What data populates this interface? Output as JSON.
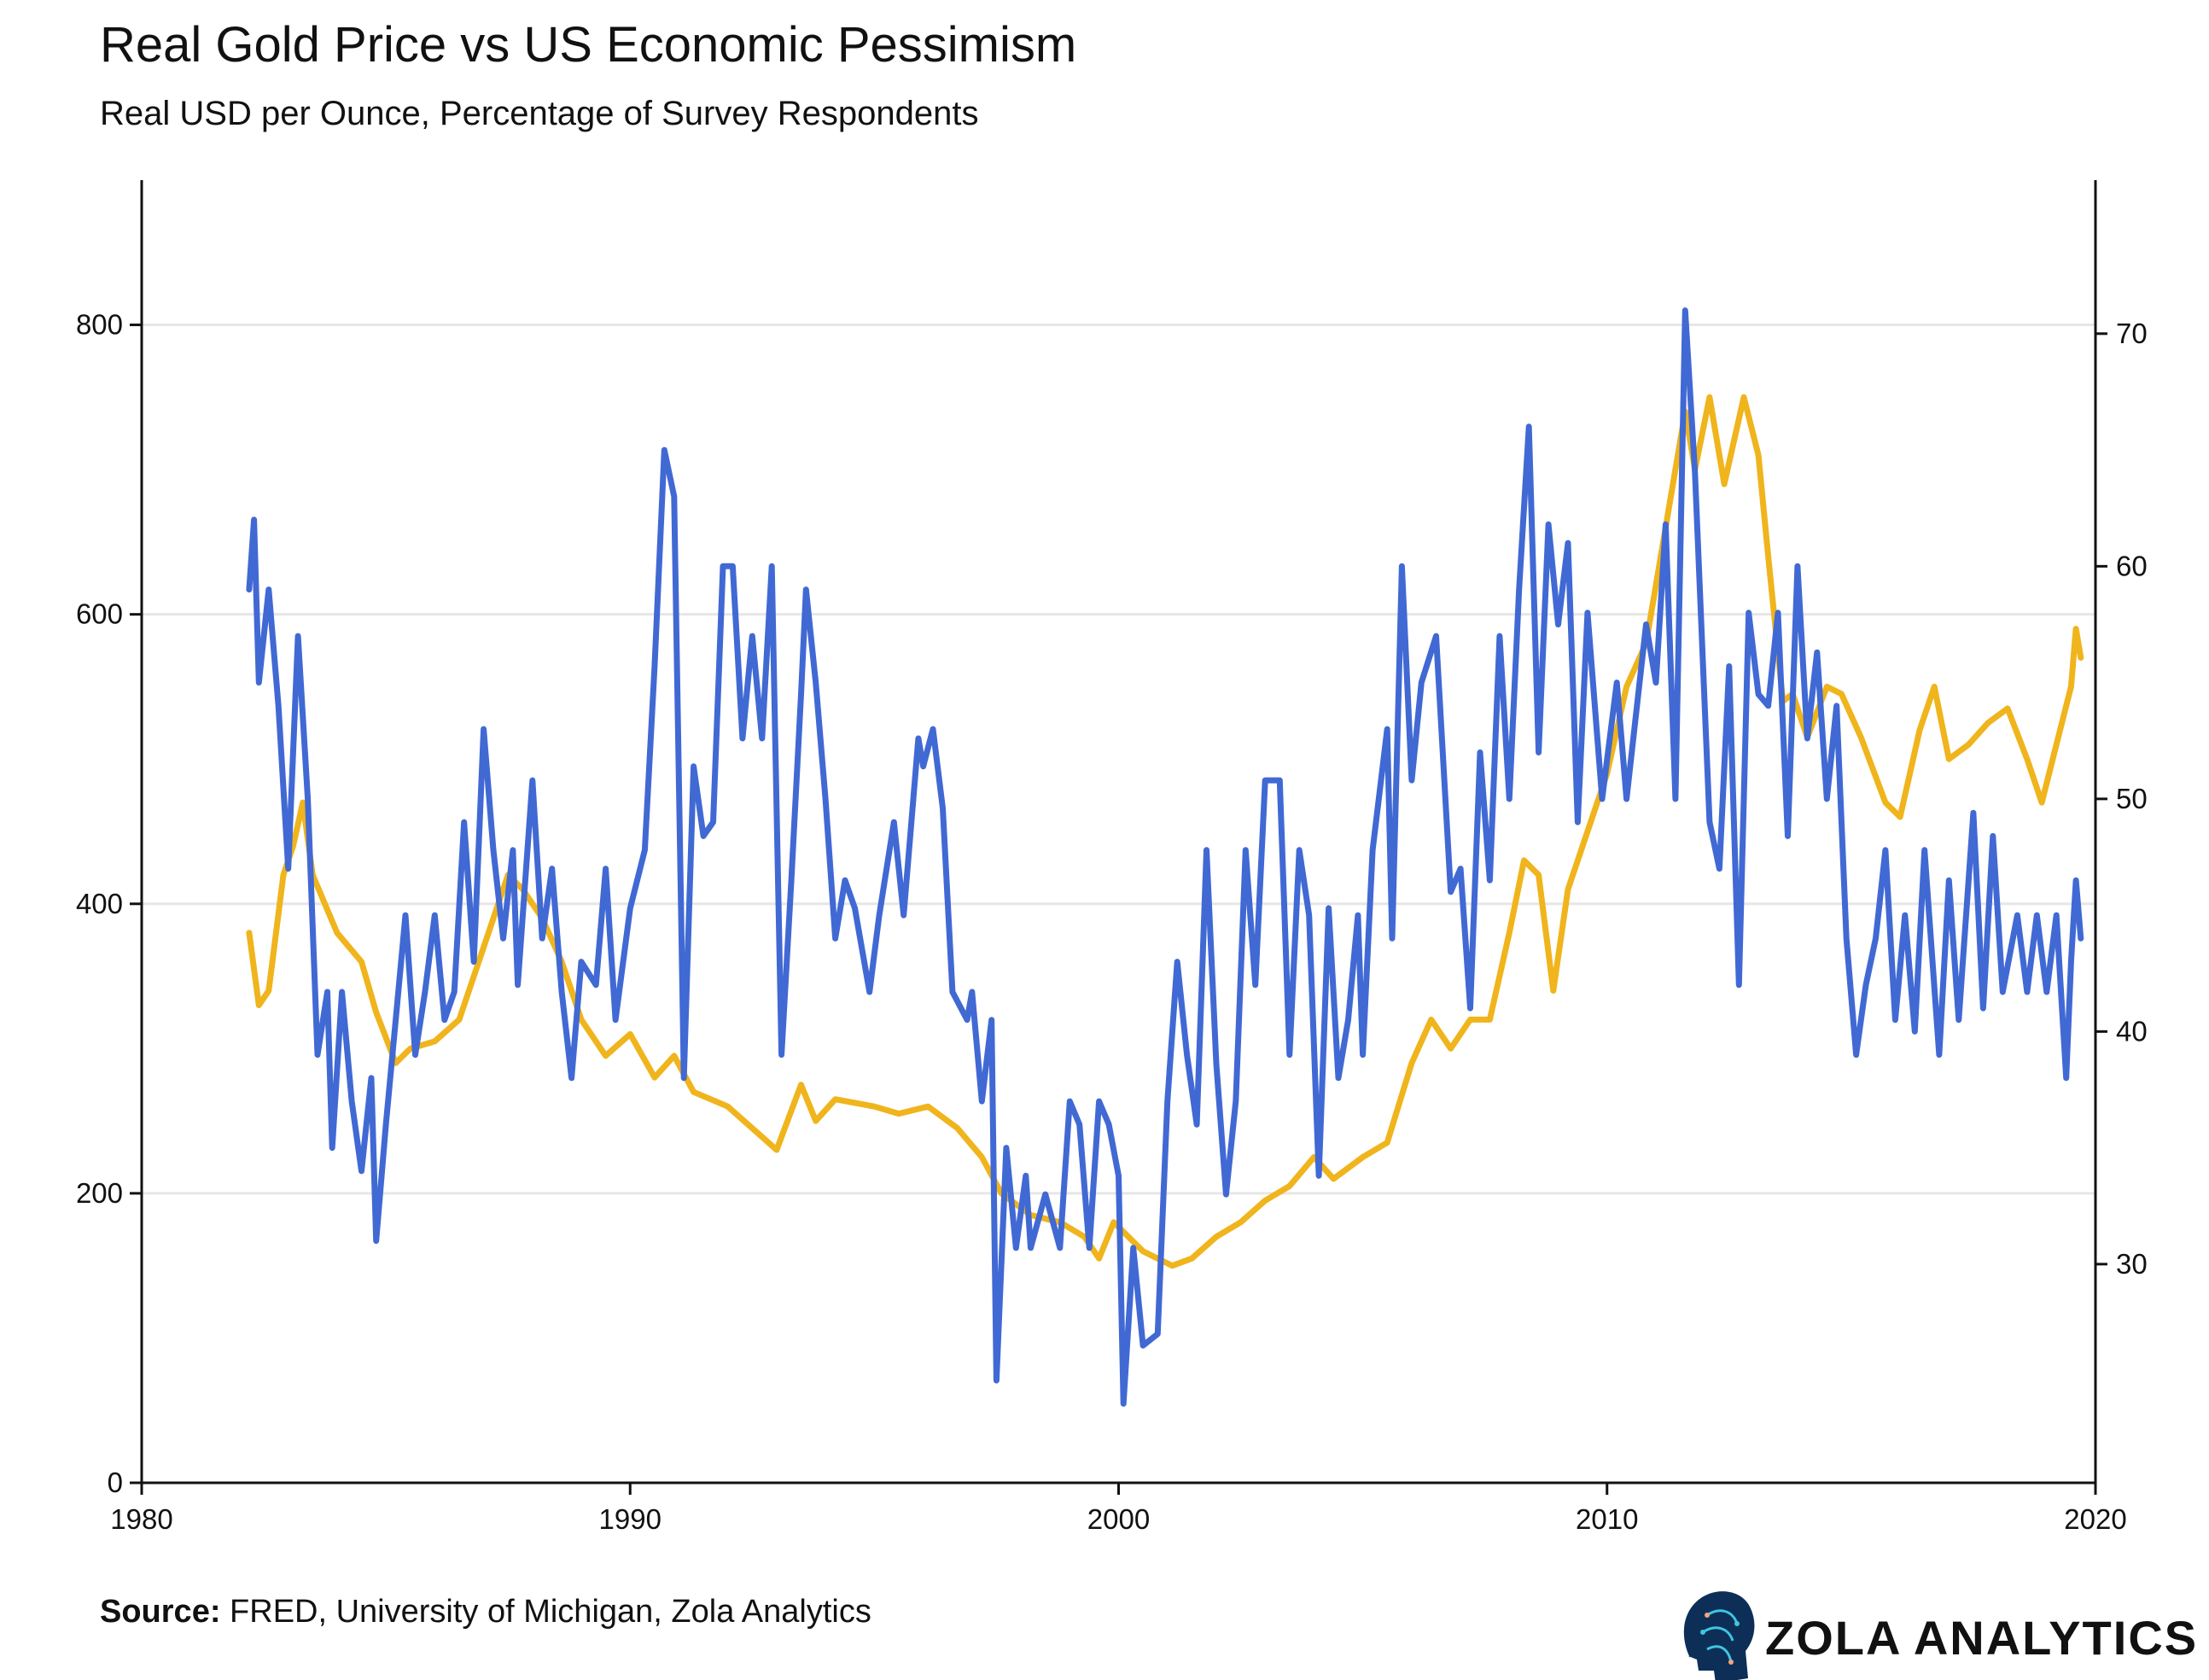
{
  "chart_data": {
    "type": "line",
    "title": "Real Gold Price vs US Economic Pessimism",
    "subtitle": "Real USD per Ounce, Percentage of Survey Respondents",
    "source_label": "Source:",
    "source_text": " FRED, University of Michigan, Zola Analytics",
    "brand": "ZOLA ANALYTICS",
    "grid": true,
    "legend": "none",
    "xlim": [
      1980,
      2020
    ],
    "xticks": [
      1980,
      1990,
      2000,
      2010,
      2020
    ],
    "ylim_left": [
      0,
      900
    ],
    "yticks_left": [
      0,
      200,
      400,
      600,
      800
    ],
    "ylim_right": [
      20.6,
      76.6
    ],
    "yticks_right": [
      30,
      40,
      50,
      60,
      70
    ],
    "series": [
      {
        "axis": "left",
        "color": "#F0B41C",
        "points": [
          [
            1982.2,
            380
          ],
          [
            1982.4,
            330
          ],
          [
            1982.6,
            340
          ],
          [
            1982.9,
            420
          ],
          [
            1983.1,
            440
          ],
          [
            1983.3,
            470
          ],
          [
            1983.5,
            420
          ],
          [
            1984.0,
            380
          ],
          [
            1984.5,
            360
          ],
          [
            1984.8,
            325
          ],
          [
            1985.2,
            290
          ],
          [
            1985.5,
            300
          ],
          [
            1986.0,
            305
          ],
          [
            1986.5,
            320
          ],
          [
            1987.0,
            370
          ],
          [
            1987.5,
            420
          ],
          [
            1987.8,
            410
          ],
          [
            1988.2,
            390
          ],
          [
            1988.6,
            360
          ],
          [
            1989.0,
            320
          ],
          [
            1989.5,
            295
          ],
          [
            1990.0,
            310
          ],
          [
            1990.5,
            280
          ],
          [
            1990.9,
            295
          ],
          [
            1991.3,
            270
          ],
          [
            1992.0,
            260
          ],
          [
            1992.5,
            245
          ],
          [
            1993.0,
            230
          ],
          [
            1993.5,
            275
          ],
          [
            1993.8,
            250
          ],
          [
            1994.2,
            265
          ],
          [
            1995.0,
            260
          ],
          [
            1995.5,
            255
          ],
          [
            1996.1,
            260
          ],
          [
            1996.7,
            245
          ],
          [
            1997.2,
            225
          ],
          [
            1997.6,
            200
          ],
          [
            1998.2,
            185
          ],
          [
            1998.8,
            180
          ],
          [
            1999.3,
            170
          ],
          [
            1999.6,
            155
          ],
          [
            1999.9,
            180
          ],
          [
            2000.5,
            160
          ],
          [
            2001.1,
            150
          ],
          [
            2001.5,
            155
          ],
          [
            2002.0,
            170
          ],
          [
            2002.5,
            180
          ],
          [
            2003.0,
            195
          ],
          [
            2003.5,
            205
          ],
          [
            2004.0,
            225
          ],
          [
            2004.4,
            210
          ],
          [
            2005.0,
            225
          ],
          [
            2005.5,
            235
          ],
          [
            2006.0,
            290
          ],
          [
            2006.4,
            320
          ],
          [
            2006.8,
            300
          ],
          [
            2007.2,
            320
          ],
          [
            2007.6,
            320
          ],
          [
            2008.0,
            380
          ],
          [
            2008.3,
            430
          ],
          [
            2008.6,
            420
          ],
          [
            2008.9,
            340
          ],
          [
            2009.2,
            410
          ],
          [
            2009.6,
            450
          ],
          [
            2010.0,
            490
          ],
          [
            2010.4,
            550
          ],
          [
            2010.8,
            580
          ],
          [
            2011.0,
            620
          ],
          [
            2011.3,
            680
          ],
          [
            2011.6,
            740
          ],
          [
            2011.8,
            700
          ],
          [
            2012.1,
            750
          ],
          [
            2012.4,
            690
          ],
          [
            2012.8,
            750
          ],
          [
            2013.1,
            710
          ],
          [
            2013.3,
            640
          ],
          [
            2013.6,
            540
          ],
          [
            2013.8,
            545
          ],
          [
            2014.1,
            515
          ],
          [
            2014.5,
            550
          ],
          [
            2014.8,
            545
          ],
          [
            2015.2,
            515
          ],
          [
            2015.7,
            470
          ],
          [
            2016.0,
            460
          ],
          [
            2016.4,
            520
          ],
          [
            2016.7,
            550
          ],
          [
            2017.0,
            500
          ],
          [
            2017.4,
            510
          ],
          [
            2017.8,
            525
          ],
          [
            2018.2,
            535
          ],
          [
            2018.6,
            500
          ],
          [
            2018.9,
            470
          ],
          [
            2019.2,
            510
          ],
          [
            2019.5,
            550
          ],
          [
            2019.6,
            590
          ],
          [
            2019.7,
            570
          ]
        ]
      },
      {
        "axis": "right",
        "color": "#4169D4",
        "points": [
          [
            1982.2,
            59
          ],
          [
            1982.3,
            62
          ],
          [
            1982.4,
            55
          ],
          [
            1982.6,
            59
          ],
          [
            1982.8,
            54
          ],
          [
            1983.0,
            47
          ],
          [
            1983.2,
            57
          ],
          [
            1983.4,
            50
          ],
          [
            1983.6,
            39
          ],
          [
            1983.8,
            41.7
          ],
          [
            1983.9,
            35
          ],
          [
            1984.1,
            41.7
          ],
          [
            1984.3,
            37
          ],
          [
            1984.5,
            34
          ],
          [
            1984.7,
            38
          ],
          [
            1984.8,
            31
          ],
          [
            1985.0,
            36
          ],
          [
            1985.2,
            40.5
          ],
          [
            1985.4,
            45
          ],
          [
            1985.6,
            39
          ],
          [
            1985.8,
            41.7
          ],
          [
            1986.0,
            45
          ],
          [
            1986.2,
            40.5
          ],
          [
            1986.4,
            41.7
          ],
          [
            1986.6,
            49
          ],
          [
            1986.8,
            43
          ],
          [
            1987.0,
            53
          ],
          [
            1987.2,
            47.8
          ],
          [
            1987.4,
            44
          ],
          [
            1987.6,
            47.8
          ],
          [
            1987.7,
            42
          ],
          [
            1988.0,
            50.8
          ],
          [
            1988.2,
            44
          ],
          [
            1988.4,
            47
          ],
          [
            1988.6,
            41.7
          ],
          [
            1988.8,
            38
          ],
          [
            1989.0,
            43
          ],
          [
            1989.3,
            42
          ],
          [
            1989.5,
            47
          ],
          [
            1989.7,
            40.5
          ],
          [
            1990.0,
            45.3
          ],
          [
            1990.3,
            47.8
          ],
          [
            1990.5,
            55.7
          ],
          [
            1990.7,
            65
          ],
          [
            1990.9,
            63
          ],
          [
            1991.1,
            38
          ],
          [
            1991.3,
            51.4
          ],
          [
            1991.5,
            48.4
          ],
          [
            1991.7,
            49
          ],
          [
            1991.9,
            60
          ],
          [
            1992.1,
            60
          ],
          [
            1992.3,
            52.6
          ],
          [
            1992.5,
            57
          ],
          [
            1992.7,
            52.6
          ],
          [
            1992.9,
            60
          ],
          [
            1993.1,
            39
          ],
          [
            1993.3,
            46.5
          ],
          [
            1993.5,
            54.5
          ],
          [
            1993.6,
            59
          ],
          [
            1993.8,
            55
          ],
          [
            1994.0,
            50
          ],
          [
            1994.2,
            44
          ],
          [
            1994.4,
            46.5
          ],
          [
            1994.6,
            45.3
          ],
          [
            1994.9,
            41.7
          ],
          [
            1995.1,
            45
          ],
          [
            1995.4,
            49
          ],
          [
            1995.6,
            45
          ],
          [
            1995.9,
            52.6
          ],
          [
            1996.0,
            51.4
          ],
          [
            1996.2,
            53
          ],
          [
            1996.4,
            49.6
          ],
          [
            1996.6,
            41.7
          ],
          [
            1996.9,
            40.5
          ],
          [
            1997.0,
            41.7
          ],
          [
            1997.2,
            37
          ],
          [
            1997.4,
            40.5
          ],
          [
            1997.5,
            25
          ],
          [
            1997.7,
            35
          ],
          [
            1997.9,
            30.7
          ],
          [
            1998.1,
            33.8
          ],
          [
            1998.2,
            30.7
          ],
          [
            1998.5,
            33
          ],
          [
            1998.8,
            30.7
          ],
          [
            1999.0,
            37
          ],
          [
            1999.2,
            36
          ],
          [
            1999.4,
            30.7
          ],
          [
            1999.6,
            37
          ],
          [
            1999.8,
            36
          ],
          [
            2000.0,
            33.8
          ],
          [
            2000.1,
            24
          ],
          [
            2000.3,
            30.7
          ],
          [
            2000.5,
            26.5
          ],
          [
            2000.8,
            27
          ],
          [
            2001.0,
            37
          ],
          [
            2001.2,
            43
          ],
          [
            2001.4,
            39
          ],
          [
            2001.6,
            36
          ],
          [
            2001.8,
            47.8
          ],
          [
            2002.0,
            38.6
          ],
          [
            2002.2,
            33
          ],
          [
            2002.4,
            37
          ],
          [
            2002.6,
            47.8
          ],
          [
            2002.8,
            42
          ],
          [
            2003.0,
            50.8
          ],
          [
            2003.3,
            50.8
          ],
          [
            2003.5,
            39
          ],
          [
            2003.7,
            47.8
          ],
          [
            2003.9,
            45
          ],
          [
            2004.1,
            33.8
          ],
          [
            2004.3,
            45.3
          ],
          [
            2004.5,
            38
          ],
          [
            2004.7,
            40.5
          ],
          [
            2004.9,
            45
          ],
          [
            2005.0,
            39
          ],
          [
            2005.2,
            47.8
          ],
          [
            2005.5,
            53
          ],
          [
            2005.6,
            44
          ],
          [
            2005.8,
            60
          ],
          [
            2006.0,
            50.8
          ],
          [
            2006.2,
            55
          ],
          [
            2006.5,
            57
          ],
          [
            2006.8,
            46
          ],
          [
            2007.0,
            47
          ],
          [
            2007.2,
            41
          ],
          [
            2007.4,
            52
          ],
          [
            2007.6,
            46.5
          ],
          [
            2007.8,
            57
          ],
          [
            2008.0,
            50
          ],
          [
            2008.2,
            59
          ],
          [
            2008.4,
            66
          ],
          [
            2008.6,
            52
          ],
          [
            2008.8,
            61.8
          ],
          [
            2009.0,
            57.5
          ],
          [
            2009.2,
            61
          ],
          [
            2009.4,
            49
          ],
          [
            2009.6,
            58
          ],
          [
            2009.9,
            50
          ],
          [
            2010.2,
            55
          ],
          [
            2010.4,
            50
          ],
          [
            2010.8,
            57.5
          ],
          [
            2011.0,
            55
          ],
          [
            2011.2,
            61.8
          ],
          [
            2011.4,
            50
          ],
          [
            2011.6,
            71
          ],
          [
            2011.8,
            64
          ],
          [
            2012.1,
            49
          ],
          [
            2012.3,
            47
          ],
          [
            2012.5,
            55.7
          ],
          [
            2012.7,
            42
          ],
          [
            2012.9,
            58
          ],
          [
            2013.1,
            54.5
          ],
          [
            2013.3,
            54
          ],
          [
            2013.5,
            58
          ],
          [
            2013.7,
            48.4
          ],
          [
            2013.9,
            60
          ],
          [
            2014.1,
            52.6
          ],
          [
            2014.3,
            56.3
          ],
          [
            2014.5,
            50
          ],
          [
            2014.7,
            54
          ],
          [
            2014.9,
            44
          ],
          [
            2015.1,
            39
          ],
          [
            2015.3,
            42
          ],
          [
            2015.5,
            44
          ],
          [
            2015.7,
            47.8
          ],
          [
            2015.9,
            40.5
          ],
          [
            2016.1,
            45
          ],
          [
            2016.3,
            40
          ],
          [
            2016.5,
            47.8
          ],
          [
            2016.8,
            39
          ],
          [
            2017.0,
            46.5
          ],
          [
            2017.2,
            40.5
          ],
          [
            2017.5,
            49.4
          ],
          [
            2017.7,
            41
          ],
          [
            2017.9,
            48.4
          ],
          [
            2018.1,
            41.7
          ],
          [
            2018.4,
            45
          ],
          [
            2018.6,
            41.7
          ],
          [
            2018.8,
            45
          ],
          [
            2019.0,
            41.7
          ],
          [
            2019.2,
            45
          ],
          [
            2019.4,
            38
          ],
          [
            2019.5,
            43
          ],
          [
            2019.6,
            46.5
          ],
          [
            2019.7,
            44
          ]
        ]
      }
    ],
    "colors": {
      "gold_line": "#F0B41C",
      "pessimism_line": "#4169D4",
      "grid": "#E6E6E6",
      "axis": "#111111"
    },
    "logo_icon": "circuit-head-icon"
  }
}
